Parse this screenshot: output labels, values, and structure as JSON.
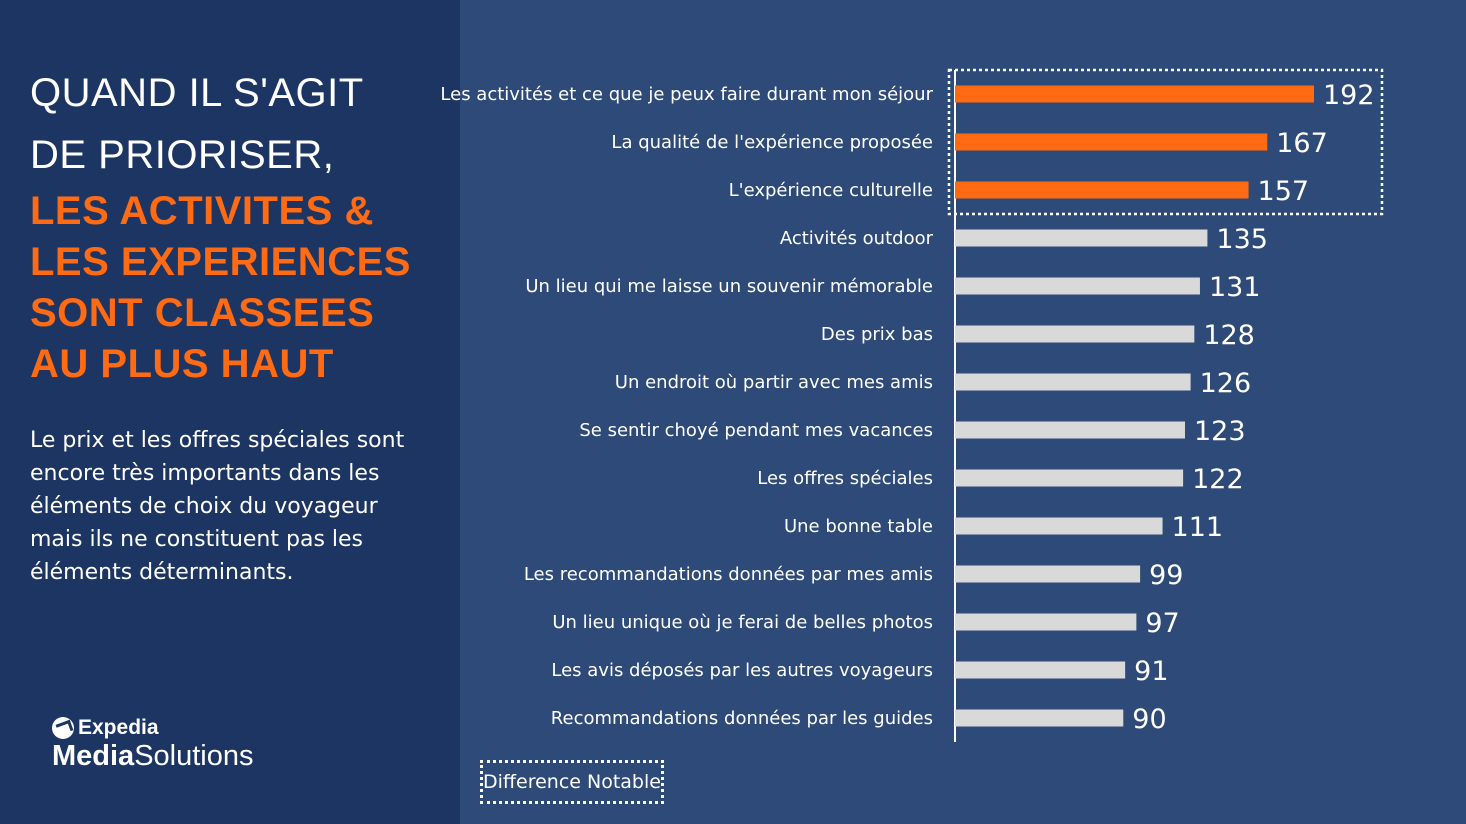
{
  "heading": {
    "lines": [
      "QUAND IL S'AGIT",
      "DE PRIORISER,"
    ],
    "accent_lines": [
      "LES ACTIVITES &",
      "LES EXPERIENCES",
      "SONT CLASSEES",
      "AU PLUS HAUT"
    ]
  },
  "body_text": "Le prix et les offres spéciales sont encore très importants dans les éléments de choix du voyageur mais ils ne constituent pas les éléments déterminants.",
  "logo": {
    "top": "Expedia",
    "bottom_bold": "Media",
    "bottom_regular": "Solutions",
    "icon": "expedia-globe-icon"
  },
  "legend": {
    "label": "Difference Notable"
  },
  "colors": {
    "highlight": "#ff6a13",
    "bar": "#d9d9d9",
    "left_panel": "#1d3563",
    "right_panel": "#2e4a78",
    "text": "#ffffff"
  },
  "chart_data": {
    "type": "bar",
    "orientation": "horizontal",
    "categories": [
      "Les activités et ce que je peux faire durant mon séjour",
      "La qualité de l'expérience proposée",
      "L'expérience culturelle",
      "Activités outdoor",
      "Un lieu qui me laisse un souvenir mémorable",
      "Des prix bas",
      "Un endroit où partir avec mes amis",
      "Se sentir choyé pendant mes vacances",
      "Les offres spéciales",
      "Une bonne table",
      "Les recommandations données par mes amis",
      "Un lieu unique où je ferai de belles photos",
      "Les avis déposés par les autres voyageurs",
      "Recommandations données par les guides"
    ],
    "values": [
      192,
      167,
      157,
      135,
      131,
      128,
      126,
      123,
      122,
      111,
      99,
      97,
      91,
      90
    ],
    "highlighted": [
      true,
      true,
      true,
      false,
      false,
      false,
      false,
      false,
      false,
      false,
      false,
      false,
      false,
      false
    ],
    "xlim": [
      0,
      192
    ],
    "grid": false,
    "legend_position": "bottom-left"
  }
}
